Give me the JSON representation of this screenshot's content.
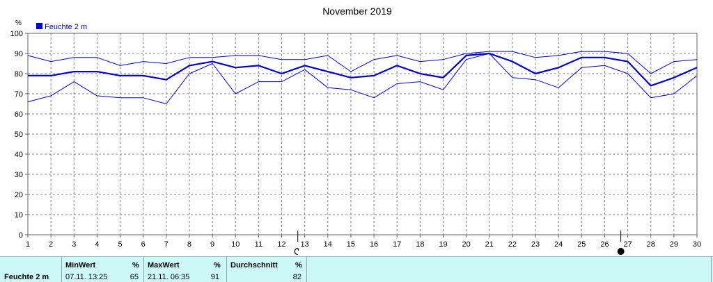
{
  "chart_data": {
    "type": "line",
    "title": "November 2019",
    "ylabel": "%",
    "legend": "Feuchte  2 m",
    "legend_position": "top-left",
    "ylim": [
      0,
      100
    ],
    "yticks": [
      0,
      10,
      20,
      30,
      40,
      50,
      60,
      70,
      80,
      90,
      100
    ],
    "x": [
      1,
      2,
      3,
      4,
      5,
      6,
      7,
      8,
      9,
      10,
      11,
      12,
      13,
      14,
      15,
      16,
      17,
      18,
      19,
      20,
      21,
      22,
      23,
      24,
      25,
      26,
      27,
      28,
      29,
      30
    ],
    "grid": true,
    "series": [
      {
        "name": "Feuchte  2 m",
        "role": "mean",
        "values": [
          79,
          79,
          81,
          81,
          79,
          79,
          77,
          84,
          86,
          83,
          84,
          80,
          84,
          81,
          78,
          79,
          84,
          80,
          78,
          89,
          90,
          86,
          80,
          83,
          88,
          88,
          86,
          74,
          78,
          83
        ]
      },
      {
        "role": "max",
        "values": [
          89,
          86,
          88,
          88,
          84,
          86,
          85,
          88,
          88,
          89,
          89,
          87,
          87,
          89,
          81,
          87,
          89,
          86,
          87,
          90,
          91,
          91,
          88,
          89,
          91,
          91,
          90,
          80,
          86,
          87
        ]
      },
      {
        "role": "min",
        "values": [
          66,
          69,
          76,
          69,
          68,
          68,
          65,
          80,
          85,
          70,
          76,
          76,
          82,
          73,
          72,
          68,
          75,
          76,
          72,
          87,
          90,
          78,
          77,
          73,
          83,
          84,
          80,
          68,
          70,
          79
        ]
      }
    ],
    "moon_markers": [
      {
        "day": 12.7,
        "phase": "first-quarter"
      },
      {
        "day": 26.7,
        "phase": "new-moon"
      }
    ],
    "colors": {
      "line": "#0000cc",
      "grid": "#808080",
      "axis": "#606060",
      "footer_bg": "#ccf8f8"
    }
  },
  "footer": {
    "label": "Feuchte  2 m",
    "min": {
      "header": "MinWert",
      "unit": "%",
      "datetime": "07.11.  13:25",
      "value": "65"
    },
    "max": {
      "header": "MaxWert",
      "unit": "%",
      "datetime": "21.11.  06:35",
      "value": "91"
    },
    "avg": {
      "header": "Durchschnitt",
      "unit": "%",
      "value": "82"
    }
  }
}
